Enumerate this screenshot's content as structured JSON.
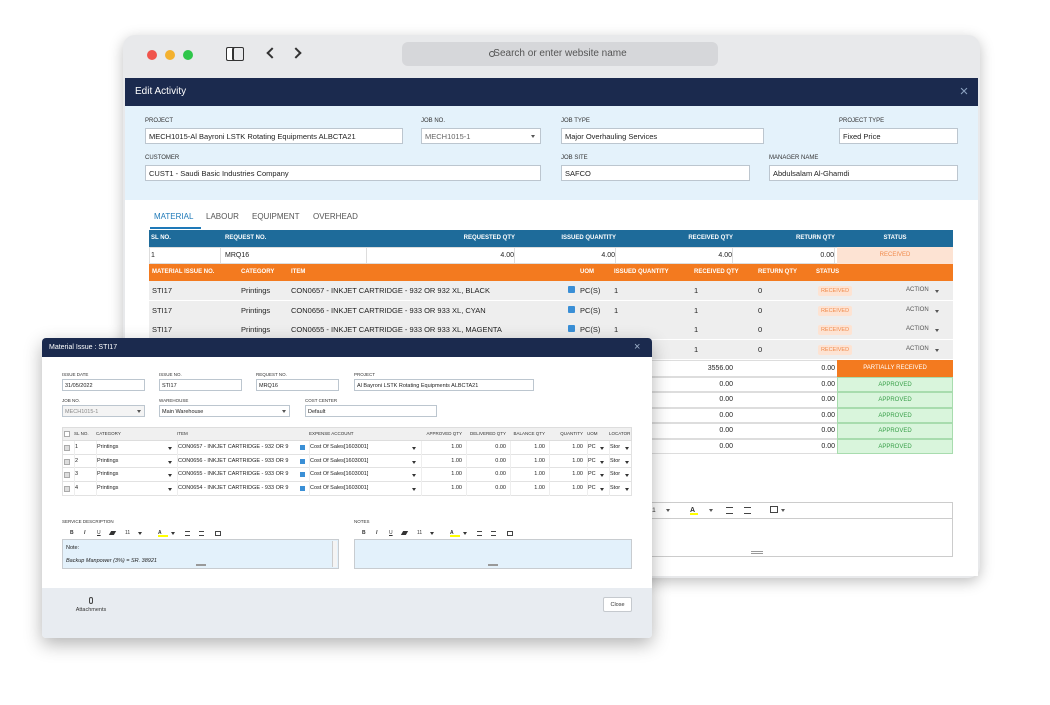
{
  "browser": {
    "address_placeholder": "Search or enter website name"
  },
  "edit_activity": {
    "title": "Edit Activity",
    "fields": [
      {
        "label": "PROJECT",
        "value": "MECH1015-Al Bayroni LSTK Rotating Equipments ALBCTA21"
      },
      {
        "label": "JOB NO.",
        "value": "MECH1015-1"
      },
      {
        "label": "JOB TYPE",
        "value": "Major Overhauling Services"
      },
      {
        "label": "PROJECT TYPE",
        "value": "Fixed Price"
      },
      {
        "label": "CUSTOMER",
        "value": "CUST1 - Saudi Basic Industries Company"
      },
      {
        "label": "JOB SITE",
        "value": "SAFCO"
      },
      {
        "label": "MANAGER NAME",
        "value": "Abdulsalam Al-Ghamdi"
      }
    ],
    "tabs": [
      "MATERIAL",
      "LABOUR",
      "EQUIPMENT",
      "OVERHEAD"
    ],
    "request_table": {
      "columns": [
        "SL NO.",
        "REQUEST NO.",
        "REQUESTED QTY",
        "ISSUED QUANTITY",
        "RECEIVED QTY",
        "RETURN QTY",
        "STATUS"
      ],
      "rows": [
        [
          "1",
          "MRQ16",
          "4.00",
          "4.00",
          "4.00",
          "0.00",
          "RECEIVED"
        ]
      ]
    },
    "issue_table": {
      "columns": [
        "MATERIAL ISSUE NO.",
        "CATEGORY",
        "ITEM",
        "UOM",
        "ISSUED QUANTITY",
        "RECEIVED QTY",
        "RETURN QTY",
        "STATUS"
      ],
      "rows": [
        [
          "STI17",
          "Printings",
          "CON0657 - INKJET CARTRIDGE - 932 OR 932 XL, BLACK",
          "PC(S)",
          "1",
          "1",
          "0",
          "RECEIVED",
          "ACTION"
        ],
        [
          "STI17",
          "Printings",
          "CON0656 - INKJET CARTRIDGE - 933 OR 933 XL, CYAN",
          "PC(S)",
          "1",
          "1",
          "0",
          "RECEIVED",
          "ACTION"
        ],
        [
          "STI17",
          "Printings",
          "CON0655 - INKJET CARTRIDGE - 933 OR 933 XL, MAGENTA",
          "PC(S)",
          "1",
          "1",
          "0",
          "RECEIVED",
          "ACTION"
        ],
        [
          null,
          null,
          null,
          null,
          null,
          "1",
          "0",
          "RECEIVED",
          "ACTION"
        ]
      ]
    },
    "other_rows": [
      [
        "3556.00",
        "0.00",
        "PARTIALLY RECEIVED"
      ],
      [
        "0.00",
        "0.00",
        "APPROVED"
      ],
      [
        "0.00",
        "0.00",
        "APPROVED"
      ],
      [
        "0.00",
        "0.00",
        "APPROVED"
      ],
      [
        "0.00",
        "0.00",
        "APPROVED"
      ],
      [
        "0.00",
        "0.00",
        "APPROVED"
      ]
    ],
    "editor_toolbar": [
      "11",
      "A"
    ]
  },
  "modal": {
    "title": "Material Issue : STI17",
    "fields": [
      {
        "label": "ISSUE DATE",
        "value": "31/05/2022"
      },
      {
        "label": "ISSUE NO.",
        "value": "STI17"
      },
      {
        "label": "REQUEST NO.",
        "value": "MRQ16"
      },
      {
        "label": "PROJECT",
        "value": "Al Bayroni LSTK Rotating Equipments ALBCTA21"
      },
      {
        "label": "JOB NO.",
        "value": "MECH1015-1"
      },
      {
        "label": "WAREHOUSE",
        "value": "Main Warehouse"
      },
      {
        "label": "COST CENTER",
        "value": "Default"
      }
    ],
    "table": {
      "columns": [
        "SL NO.",
        "CATEGORY",
        "ITEM",
        "EXPENSE ACCOUNT",
        "APPROVED QTY",
        "DELIVERED QTY",
        "BALANCE QTY",
        "QUANTITY",
        "UOM",
        "LOCATOR"
      ],
      "rows": [
        [
          "1",
          "Printings",
          "CON0657 - INKJET CARTRIDGE - 932 OR 9",
          "Cost Of Sales[1603001]",
          "1.00",
          "0.00",
          "1.00",
          "1.00",
          "PC",
          "Stor"
        ],
        [
          "2",
          "Printings",
          "CON0656 - INKJET CARTRIDGE - 933 OR 9",
          "Cost Of Sales[1603001]",
          "1.00",
          "0.00",
          "1.00",
          "1.00",
          "PC",
          "Stor"
        ],
        [
          "3",
          "Printings",
          "CON0655 - INKJET CARTRIDGE - 933 OR 9",
          "Cost Of Sales[1603001]",
          "1.00",
          "0.00",
          "1.00",
          "1.00",
          "PC",
          "Stor"
        ],
        [
          "4",
          "Printings",
          "CON0654 - INKJET CARTRIDGE - 933 OR 9",
          "Cost Of Sales[1603001]",
          "1.00",
          "0.00",
          "1.00",
          "1.00",
          "PC",
          "Stor"
        ]
      ]
    },
    "service_description": {
      "label": "SERVICE DESCRIPTION",
      "toolbar": [
        "B",
        "I",
        "U",
        "11",
        "A"
      ],
      "lines": [
        "Note:",
        "Backup Manpower (3%) = SR. 38921"
      ]
    },
    "notes": {
      "label": "NOTES",
      "toolbar": [
        "B",
        "I",
        "U",
        "11",
        "A"
      ]
    },
    "attachments": "Attachments",
    "close": "Close"
  }
}
